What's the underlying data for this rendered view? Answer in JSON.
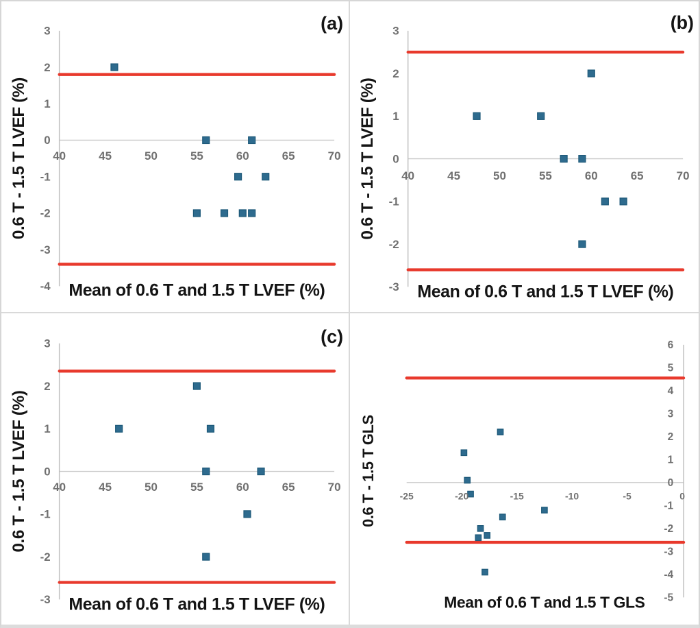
{
  "figure": {
    "description": "Bland-Altman agreement plots comparing 0.6 T and 1.5 T cardiac MRI measurements",
    "panel_letters": [
      "(a)",
      "(b)",
      "(c)",
      ""
    ]
  },
  "colors": {
    "marker_fill": "#2E6B8E",
    "marker_stroke": "#1C5878",
    "loa_line": "#E8392C",
    "zero_line": "#C9C9C9",
    "axis_line": "#C0C0C0",
    "tick_label": "#707070",
    "axis_title": "#141414",
    "divider": "#D9D9D9"
  },
  "chart_data": [
    {
      "type": "scatter",
      "panel_label": "(a)",
      "xlabel": "Mean of 0.6 T and 1.5 T LVEF (%)",
      "ylabel": "0.6 T  - 1.5 T LVEF (%)",
      "xlim": [
        40,
        70
      ],
      "ylim": [
        -4,
        3
      ],
      "xticks": [
        40,
        45,
        50,
        55,
        60,
        65,
        70
      ],
      "yticks": [
        3,
        2,
        1,
        0,
        -1,
        -2,
        -3,
        -4
      ],
      "points": [
        [
          46,
          2
        ],
        [
          56,
          0
        ],
        [
          61,
          0
        ],
        [
          59.5,
          -1
        ],
        [
          62.5,
          -1
        ],
        [
          55,
          -2
        ],
        [
          58,
          -2
        ],
        [
          60,
          -2
        ],
        [
          61,
          -2
        ]
      ],
      "loa_upper": 1.8,
      "loa_lower": -3.4,
      "y_axis_side": "left",
      "grid": "zero-line-only",
      "legend": "none"
    },
    {
      "type": "scatter",
      "panel_label": "(b)",
      "xlabel": "Mean of 0.6 T and 1.5 T LVEF (%)",
      "ylabel": "0.6 T  - 1.5 T LVEF (%)",
      "xlim": [
        40,
        70
      ],
      "ylim": [
        -3,
        3
      ],
      "xticks": [
        40,
        45,
        50,
        55,
        60,
        65,
        70
      ],
      "yticks": [
        3,
        2,
        1,
        0,
        -1,
        -2,
        -3
      ],
      "points": [
        [
          47.5,
          1
        ],
        [
          54.5,
          1
        ],
        [
          60,
          2
        ],
        [
          57,
          0
        ],
        [
          59,
          0
        ],
        [
          61.5,
          -1
        ],
        [
          63.5,
          -1
        ],
        [
          59,
          -2
        ]
      ],
      "loa_upper": 2.5,
      "loa_lower": -2.6,
      "y_axis_side": "left",
      "grid": "zero-line-only",
      "legend": "none"
    },
    {
      "type": "scatter",
      "panel_label": "(c)",
      "xlabel": "Mean of 0.6 T and 1.5 T LVEF (%)",
      "ylabel": "0.6 T  - 1.5 T LVEF (%)",
      "xlim": [
        40,
        70
      ],
      "ylim": [
        -3,
        3
      ],
      "xticks": [
        40,
        45,
        50,
        55,
        60,
        65,
        70
      ],
      "yticks": [
        3,
        2,
        1,
        0,
        -1,
        -2,
        -3
      ],
      "points": [
        [
          46.5,
          1
        ],
        [
          55,
          2
        ],
        [
          56.5,
          1
        ],
        [
          56,
          0
        ],
        [
          62,
          0
        ],
        [
          60.5,
          -1
        ],
        [
          56,
          -2
        ]
      ],
      "loa_upper": 2.35,
      "loa_lower": -2.6,
      "y_axis_side": "left",
      "grid": "zero-line-only",
      "legend": "none"
    },
    {
      "type": "scatter",
      "panel_label": "",
      "xlabel": "Mean of 0.6 T and 1.5 T GLS",
      "ylabel": "0.6 T  - 1.5 T GLS",
      "xlim": [
        -25,
        0
      ],
      "ylim": [
        -5,
        6
      ],
      "xticks": [
        -25,
        -20,
        -15,
        -10,
        -5,
        0
      ],
      "yticks": [
        6,
        5,
        4,
        3,
        2,
        1,
        0,
        -1,
        -2,
        -3,
        -4,
        -5
      ],
      "points": [
        [
          -16.5,
          2.2
        ],
        [
          -19.8,
          1.3
        ],
        [
          -19.5,
          0.1
        ],
        [
          -19.2,
          -0.5
        ],
        [
          -12.5,
          -1.2
        ],
        [
          -16.3,
          -1.5
        ],
        [
          -18.3,
          -2
        ],
        [
          -18.5,
          -2.4
        ],
        [
          -17.7,
          -2.3
        ],
        [
          -17.9,
          -3.9
        ]
      ],
      "loa_upper": 4.55,
      "loa_lower": -2.6,
      "y_axis_side": "right",
      "grid": "zero-line-only",
      "legend": "none"
    }
  ]
}
